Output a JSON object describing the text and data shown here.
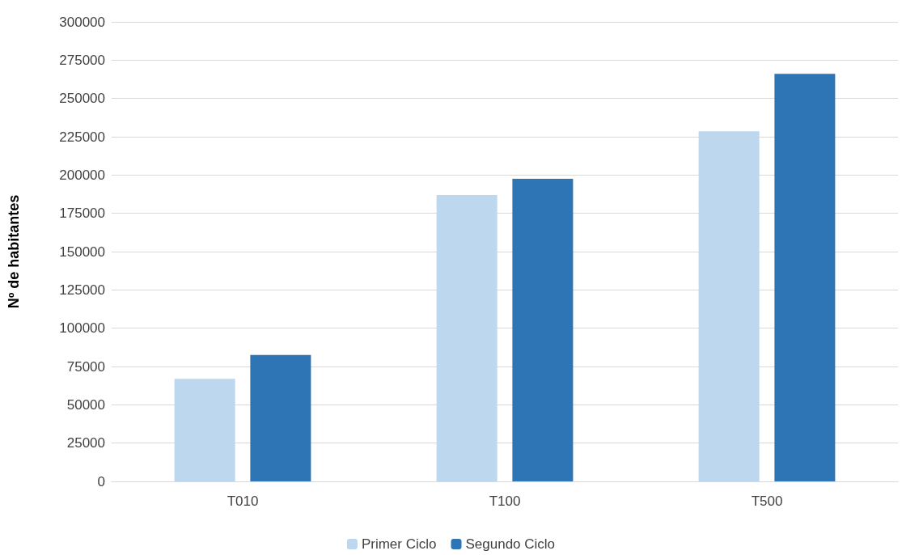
{
  "chart_data": {
    "type": "bar",
    "ylabel": "Nº de habitantes",
    "categories": [
      "T010",
      "T100",
      "T500"
    ],
    "series": [
      {
        "name": "Primer Ciclo",
        "color": "#bdd7ee",
        "values": [
          67000,
          187000,
          228500
        ]
      },
      {
        "name": "Segundo Ciclo",
        "color": "#2e75b6",
        "values": [
          82500,
          197500,
          266000
        ]
      }
    ],
    "ylim": [
      0,
      300000
    ],
    "yticks": [
      0,
      25000,
      50000,
      75000,
      100000,
      125000,
      150000,
      175000,
      200000,
      225000,
      250000,
      275000,
      300000
    ],
    "grid": "y",
    "legend": "bottom"
  }
}
